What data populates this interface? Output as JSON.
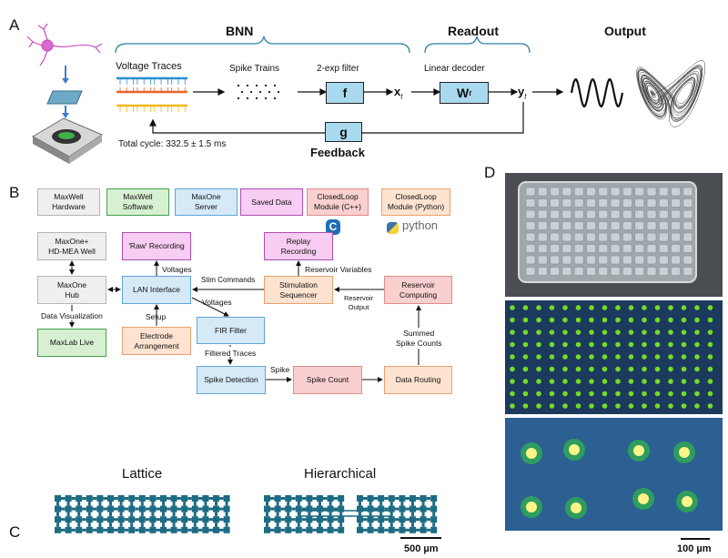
{
  "panel_labels": {
    "a": "A",
    "b": "B",
    "c": "C",
    "d": "D"
  },
  "panel_a": {
    "bnn": "BNN",
    "readout": "Readout",
    "output": "Output",
    "voltage_traces": "Voltage Traces",
    "spike_trains": "Spike Trains",
    "filter_label": "2-exp filter",
    "filter_box": "f",
    "x_t": "x",
    "x_sub": "t",
    "decoder_label": "Linear decoder",
    "decoder_box": "W",
    "decoder_sub": "t",
    "y_t": "y",
    "y_sub": "t",
    "feedback_box": "g",
    "feedback": "Feedback",
    "total_cycle": "Total cycle: 332.5 ± 1.5 ms",
    "trace_colors": [
      "#2a8fd0",
      "#e8622c",
      "#f2b81d"
    ]
  },
  "panel_b": {
    "legend": {
      "hardware": [
        "MaxWell",
        "Hardware"
      ],
      "software": [
        "MaxWell",
        "Software"
      ],
      "server": [
        "MaxOne",
        "Server"
      ],
      "saved": "Saved Data",
      "cpp": [
        "ClosedLoop",
        "Module (C++)"
      ],
      "python": [
        "ClosedLoop",
        "Module (Python)"
      ],
      "python_logo": "python",
      "cpp_logo": "C"
    },
    "boxes": {
      "well": [
        "MaxOne+",
        "HD-MEA Well"
      ],
      "hub": [
        "MaxOne",
        "Hub"
      ],
      "maxlab": "MaxLab Live",
      "raw": "'Raw' Recording",
      "lan": "LAN Interface",
      "electrode": [
        "Electrode",
        "Arrangement"
      ],
      "fir": "FIR Filter",
      "spike_detection": "Spike Detection",
      "spike_count": "Spike Count",
      "data_routing": "Data Routing",
      "stim_seq": [
        "Stimulation",
        "Sequencer"
      ],
      "replay": [
        "Replay",
        "Recording"
      ],
      "reservoir": [
        "Reservoir",
        "Computing"
      ]
    },
    "edges": {
      "data_vis": "Data Visualization",
      "voltages1": "Voltages",
      "setup": "Setup",
      "stim_commands": "Stim Commands",
      "voltages2": "Voltages",
      "filtered": "Filtered Traces",
      "spike": "Spike",
      "reservoir_vars": "Reservoir Variables",
      "reservoir_output": [
        "Reservoir",
        "Output"
      ],
      "summed": [
        "Summed",
        "Spike Counts"
      ]
    }
  },
  "panel_c": {
    "lattice": "Lattice",
    "hierarchical": "Hierarchical",
    "scale": "500 µm",
    "color": "#1e6c84"
  },
  "panel_d": {
    "scale": "100 µm"
  }
}
